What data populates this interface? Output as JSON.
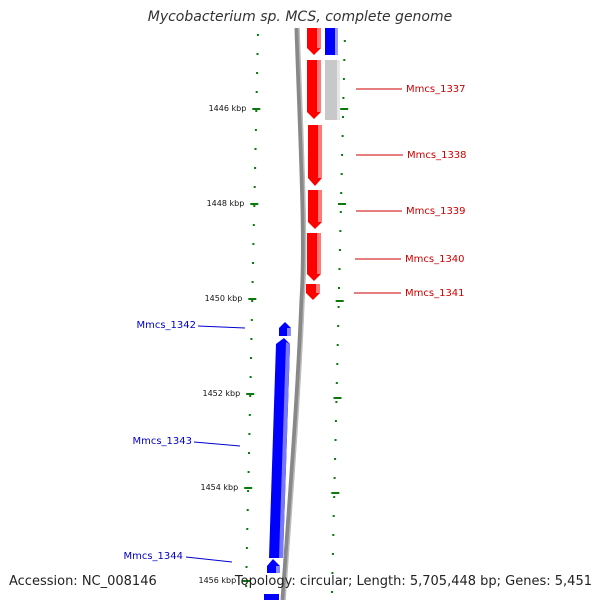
{
  "title": "Mycobacterium sp. MCS, complete genome",
  "footer": {
    "accession": "Accession: NC_008146",
    "stats": "Topology: circular; Length: 5,705,448 bp; Genes: 5,451"
  },
  "colors": {
    "forward_gene": "#ff0000",
    "reverse_gene": "#0000ff",
    "other_gene": "#c8c8c8",
    "backbone": "#888888",
    "tick": "#0a7a0a",
    "forward_label": "#cc0000",
    "reverse_label": "#0000cc"
  },
  "kbp_labels": [
    "1446 kbp",
    "1448 kbp",
    "1450 kbp",
    "1452 kbp",
    "1454 kbp",
    "1456 kbp"
  ],
  "genes_forward": [
    "Mmcs_1337",
    "Mmcs_1338",
    "Mmcs_1339",
    "Mmcs_1340",
    "Mmcs_1341"
  ],
  "genes_reverse": [
    "Mmcs_1342",
    "Mmcs_1343",
    "Mmcs_1344"
  ]
}
